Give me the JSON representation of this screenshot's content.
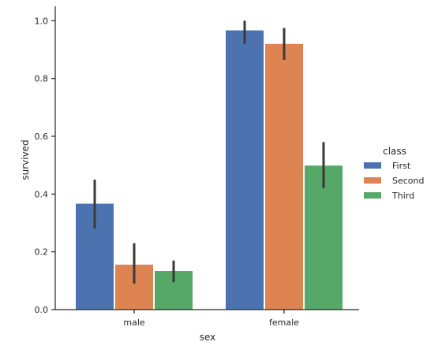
{
  "chart_data": {
    "type": "bar",
    "categories": [
      "male",
      "female"
    ],
    "xlabel": "sex",
    "ylabel": "survived",
    "ylim": [
      0,
      1.05
    ],
    "yticks": [
      "0.0",
      "0.2",
      "0.4",
      "0.6",
      "0.8",
      "1.0"
    ],
    "grid": false,
    "legend": {
      "title": "class",
      "placement": "right"
    },
    "series": [
      {
        "name": "First",
        "color": "#4c72b0",
        "values": [
          0.368,
          0.968
        ],
        "ci": [
          [
            0.28,
            0.45
          ],
          [
            0.92,
            1.0
          ]
        ]
      },
      {
        "name": "Second",
        "color": "#dd8452",
        "values": [
          0.157,
          0.921
        ],
        "ci": [
          [
            0.09,
            0.23
          ],
          [
            0.865,
            0.975
          ]
        ]
      },
      {
        "name": "Third",
        "color": "#55a868",
        "values": [
          0.135,
          0.5
        ],
        "ci": [
          [
            0.095,
            0.17
          ],
          [
            0.42,
            0.58
          ]
        ]
      }
    ]
  }
}
